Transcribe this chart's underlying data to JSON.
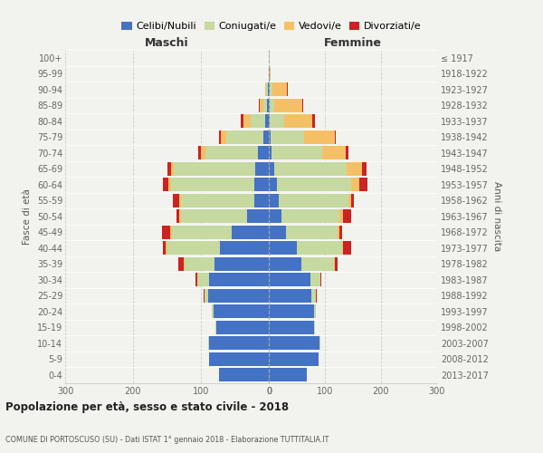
{
  "age_groups": [
    "0-4",
    "5-9",
    "10-14",
    "15-19",
    "20-24",
    "25-29",
    "30-34",
    "35-39",
    "40-44",
    "45-49",
    "50-54",
    "55-59",
    "60-64",
    "65-69",
    "70-74",
    "75-79",
    "80-84",
    "85-89",
    "90-94",
    "95-99",
    "100+"
  ],
  "birth_years": [
    "2013-2017",
    "2008-2012",
    "2003-2007",
    "1998-2002",
    "1993-1997",
    "1988-1992",
    "1983-1987",
    "1978-1982",
    "1973-1977",
    "1968-1972",
    "1963-1967",
    "1958-1962",
    "1953-1957",
    "1948-1952",
    "1943-1947",
    "1938-1942",
    "1933-1937",
    "1928-1932",
    "1923-1927",
    "1918-1922",
    "≤ 1917"
  ],
  "males": {
    "celibe": [
      74,
      88,
      88,
      78,
      82,
      90,
      88,
      80,
      72,
      55,
      32,
      22,
      22,
      20,
      16,
      8,
      5,
      3,
      2,
      0,
      0
    ],
    "coniugato": [
      0,
      0,
      1,
      1,
      2,
      5,
      18,
      44,
      78,
      88,
      98,
      108,
      122,
      120,
      78,
      55,
      22,
      5,
      2,
      0,
      0
    ],
    "vedovo": [
      0,
      0,
      0,
      0,
      0,
      0,
      0,
      1,
      2,
      2,
      2,
      2,
      4,
      4,
      6,
      8,
      10,
      5,
      2,
      0,
      0
    ],
    "divorziato": [
      0,
      0,
      0,
      0,
      0,
      1,
      2,
      8,
      4,
      12,
      4,
      10,
      8,
      6,
      4,
      2,
      4,
      2,
      0,
      0,
      0
    ]
  },
  "females": {
    "nubile": [
      68,
      88,
      90,
      80,
      80,
      75,
      74,
      58,
      50,
      30,
      22,
      18,
      14,
      10,
      5,
      3,
      2,
      2,
      2,
      1,
      0
    ],
    "coniugata": [
      0,
      0,
      2,
      2,
      4,
      9,
      18,
      58,
      80,
      92,
      104,
      124,
      133,
      128,
      90,
      60,
      25,
      8,
      4,
      0,
      0
    ],
    "vedova": [
      0,
      0,
      0,
      0,
      0,
      0,
      0,
      2,
      2,
      4,
      7,
      5,
      14,
      28,
      42,
      55,
      50,
      50,
      26,
      2,
      0
    ],
    "divorziata": [
      0,
      0,
      0,
      0,
      0,
      1,
      2,
      4,
      14,
      4,
      14,
      5,
      14,
      8,
      5,
      2,
      5,
      2,
      2,
      0,
      0
    ]
  },
  "colors": {
    "celibe": "#4472C4",
    "coniugato": "#c5d9a0",
    "vedovo": "#f5c065",
    "divorziato": "#cc2222"
  },
  "xlim": 300,
  "title": "Popolazione per età, sesso e stato civile - 2018",
  "subtitle": "COMUNE DI PORTOSCUSO (SU) - Dati ISTAT 1° gennaio 2018 - Elaborazione TUTTITALIA.IT",
  "ylabel_left": "Fasce di età",
  "ylabel_right": "Anni di nascita",
  "label_maschi": "Maschi",
  "label_femmine": "Femmine",
  "legend_labels": [
    "Celibi/Nubili",
    "Coniugati/e",
    "Vedovi/e",
    "Divorziati/e"
  ],
  "bg_color": "#f2f2ee",
  "grid_color": "#cccccc"
}
